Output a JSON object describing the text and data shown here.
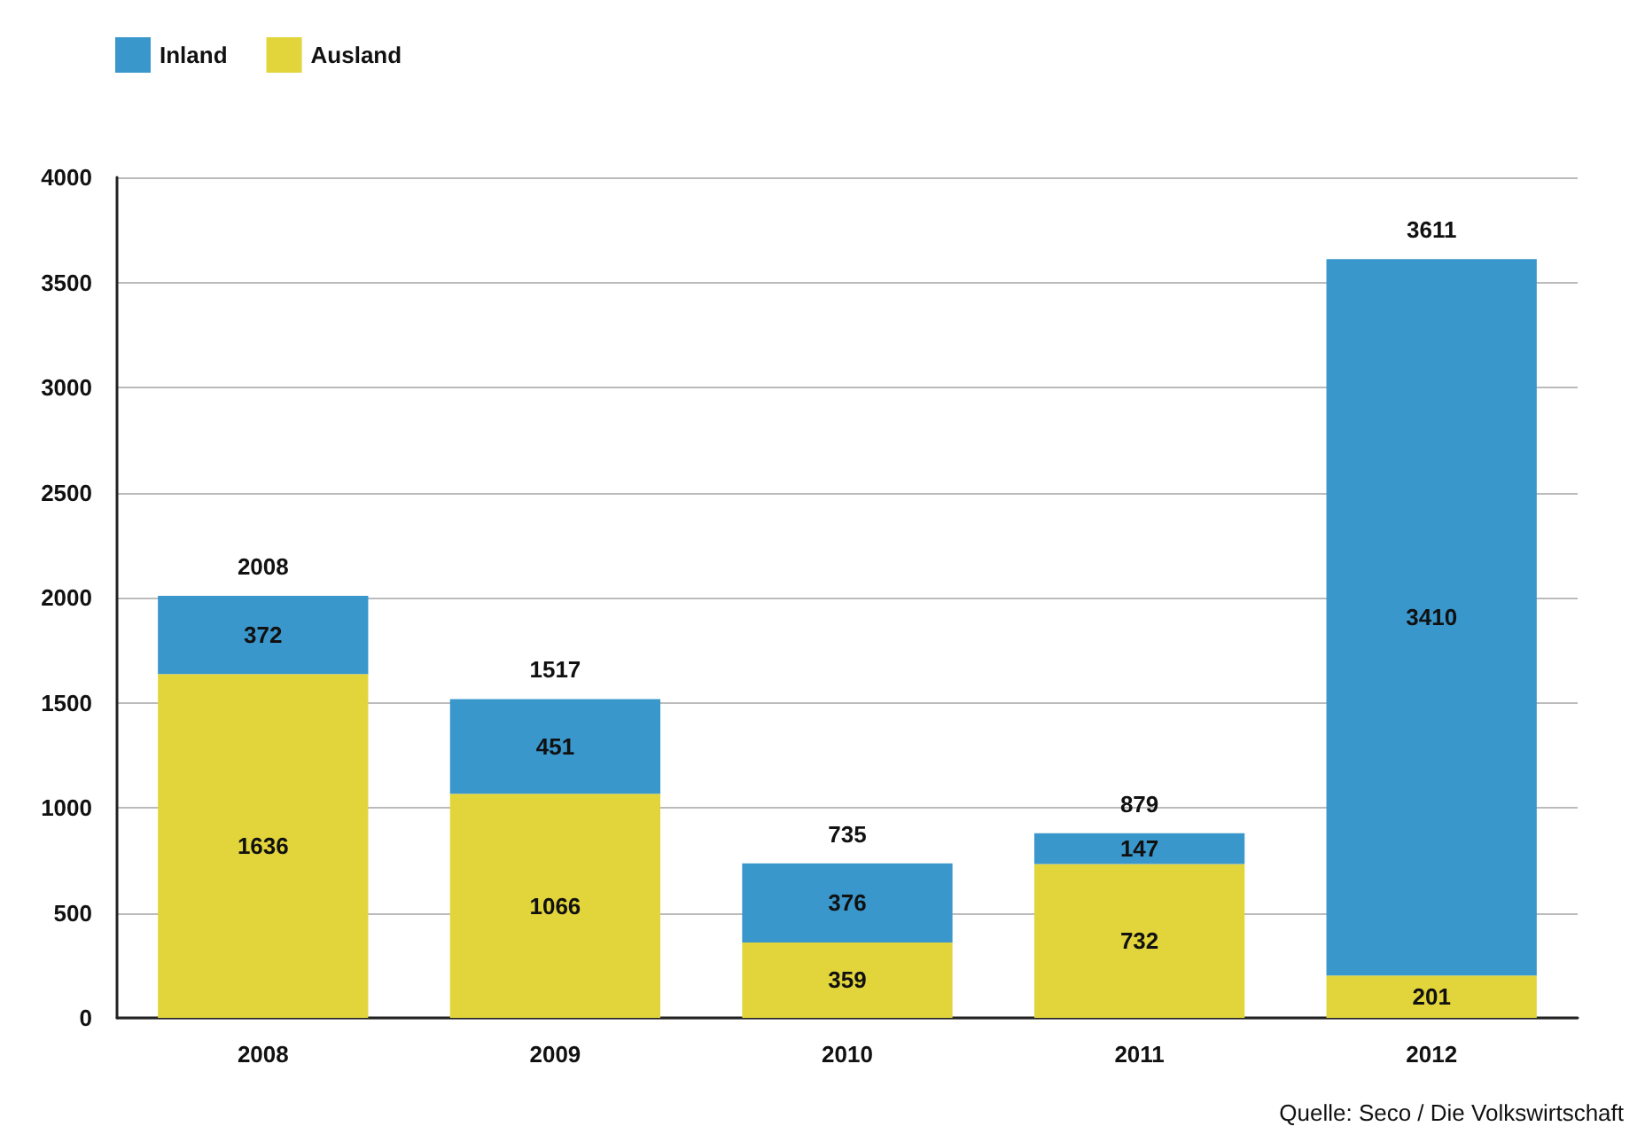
{
  "chart_data": {
    "type": "bar",
    "stacked": true,
    "categories": [
      "2008",
      "2009",
      "2010",
      "2011",
      "2012"
    ],
    "series": [
      {
        "name": "Ausland",
        "color": "#e2d53c",
        "values": [
          1636,
          1066,
          359,
          732,
          201
        ]
      },
      {
        "name": "Inland",
        "color": "#3a97cc",
        "values": [
          372,
          451,
          376,
          147,
          3410
        ]
      }
    ],
    "totals": [
      "2008",
      "1517",
      "735",
      "879",
      "3611"
    ],
    "ylim": [
      0,
      4000
    ],
    "yticks": [
      0,
      500,
      1000,
      1500,
      2000,
      2500,
      3000,
      3500,
      4000
    ],
    "grid": "y",
    "legend": "top left",
    "data_labels": true,
    "annotations": [
      "Quelle: Seco / Die Volkswirtschaft"
    ]
  }
}
